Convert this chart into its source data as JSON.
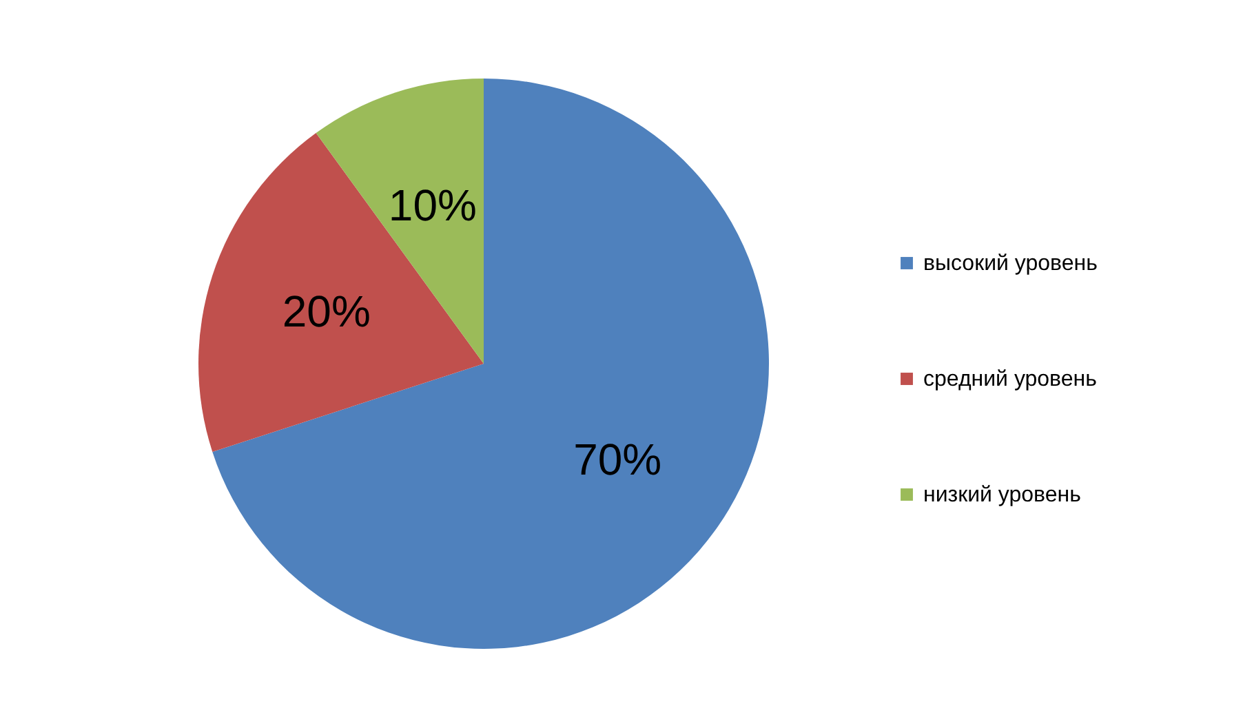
{
  "chart_data": {
    "type": "pie",
    "categories": [
      "высокий уровень",
      "средний уровень",
      "низкий уровень"
    ],
    "values": [
      70,
      20,
      10
    ],
    "colors": [
      "#4f81bd",
      "#c0504d",
      "#9bbb59"
    ],
    "value_labels": [
      "70%",
      "20%",
      "10%"
    ],
    "legend": "right"
  }
}
